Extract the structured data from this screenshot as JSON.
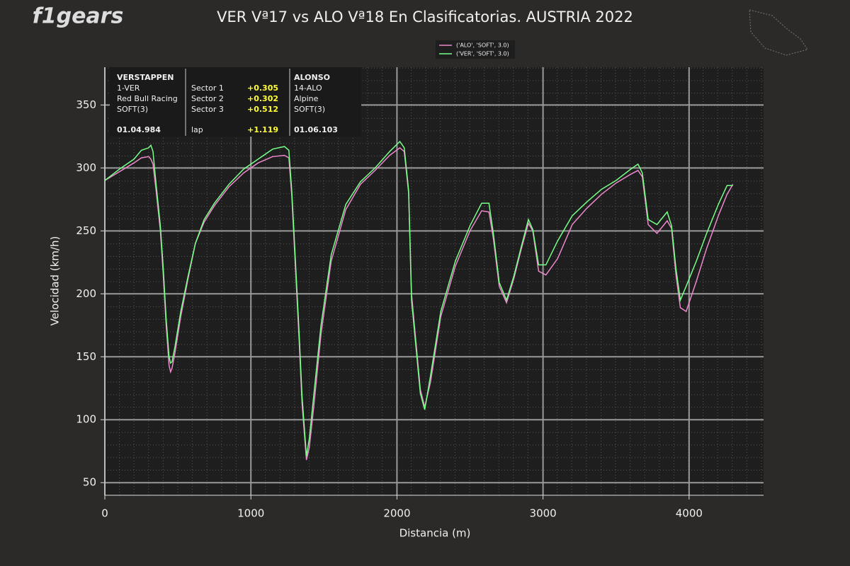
{
  "logo": "f1gears",
  "chart_data": {
    "type": "line",
    "title": "VER Vª17 vs ALO Vª18 En Clasificatorias. AUSTRIA 2022",
    "x_label": "Distancia (m)",
    "y_label": "Velocidad (km/h)",
    "xlim": [
      0,
      4510
    ],
    "ylim": [
      40,
      380
    ],
    "xticks": [
      0,
      1000,
      2000,
      3000,
      4000
    ],
    "yticks": [
      50,
      100,
      150,
      200,
      250,
      300,
      350
    ],
    "grid": true,
    "legend": "top",
    "x": [
      0,
      100,
      200,
      250,
      300,
      315,
      330,
      350,
      380,
      400,
      420,
      440,
      450,
      460,
      480,
      520,
      570,
      620,
      680,
      750,
      850,
      950,
      1050,
      1150,
      1230,
      1260,
      1280,
      1300,
      1330,
      1350,
      1380,
      1400,
      1430,
      1480,
      1550,
      1650,
      1750,
      1850,
      1950,
      2020,
      2050,
      2080,
      2100,
      2130,
      2160,
      2190,
      2230,
      2300,
      2400,
      2500,
      2580,
      2630,
      2660,
      2700,
      2750,
      2800,
      2850,
      2900,
      2930,
      2970,
      3020,
      3100,
      3200,
      3300,
      3400,
      3500,
      3600,
      3650,
      3680,
      3720,
      3780,
      3850,
      3880,
      3910,
      3940,
      3980,
      4050,
      4120,
      4200,
      4260,
      4300
    ],
    "series": [
      {
        "name": "('ALO', 'SOFT', 3.0)",
        "color": "#ee88cc",
        "values": [
          290,
          297,
          304,
          308,
          309,
          307,
          303,
          283,
          250,
          215,
          175,
          143,
          138,
          141,
          153,
          182,
          212,
          240,
          257,
          270,
          285,
          296,
          304,
          309,
          310,
          308,
          278,
          232,
          163,
          113,
          68,
          78,
          110,
          168,
          226,
          267,
          287,
          298,
          310,
          316,
          313,
          280,
          200,
          162,
          124,
          110,
          130,
          182,
          222,
          250,
          266,
          265,
          244,
          206,
          193,
          212,
          235,
          256,
          250,
          218,
          215,
          228,
          255,
          268,
          279,
          288,
          295,
          298,
          293,
          255,
          248,
          258,
          252,
          215,
          189,
          186,
          210,
          236,
          262,
          279,
          287
        ]
      },
      {
        "name": "('VER', 'SOFT', 3.0)",
        "color": "#77ff88",
        "values": [
          290,
          299,
          307,
          314,
          316,
          318,
          313,
          288,
          254,
          220,
          180,
          150,
          145,
          146,
          158,
          186,
          214,
          240,
          259,
          272,
          287,
          299,
          307,
          315,
          317,
          314,
          282,
          237,
          169,
          119,
          71,
          85,
          119,
          175,
          231,
          271,
          289,
          300,
          313,
          321,
          316,
          282,
          195,
          158,
          121,
          108,
          135,
          186,
          226,
          254,
          272,
          272,
          248,
          209,
          195,
          214,
          237,
          259,
          251,
          223,
          223,
          242,
          262,
          273,
          283,
          290,
          299,
          303,
          296,
          259,
          255,
          265,
          254,
          220,
          195,
          206,
          226,
          248,
          271,
          286,
          286
        ]
      }
    ]
  },
  "info_box": {
    "left": [
      "VERSTAPPEN",
      "1-VER",
      "Red Bull Racing",
      "SOFT(3)",
      "01.04.984"
    ],
    "sectors": [
      [
        "Sector 1",
        "+0.305"
      ],
      [
        "Sector 2",
        "+0.302"
      ],
      [
        "Sector 3",
        "+0.512"
      ],
      [
        "lap",
        "+1.119"
      ]
    ],
    "right": [
      "ALONSO",
      "14-ALO",
      "Alpine",
      "SOFT(3)",
      "01.06.103"
    ]
  }
}
